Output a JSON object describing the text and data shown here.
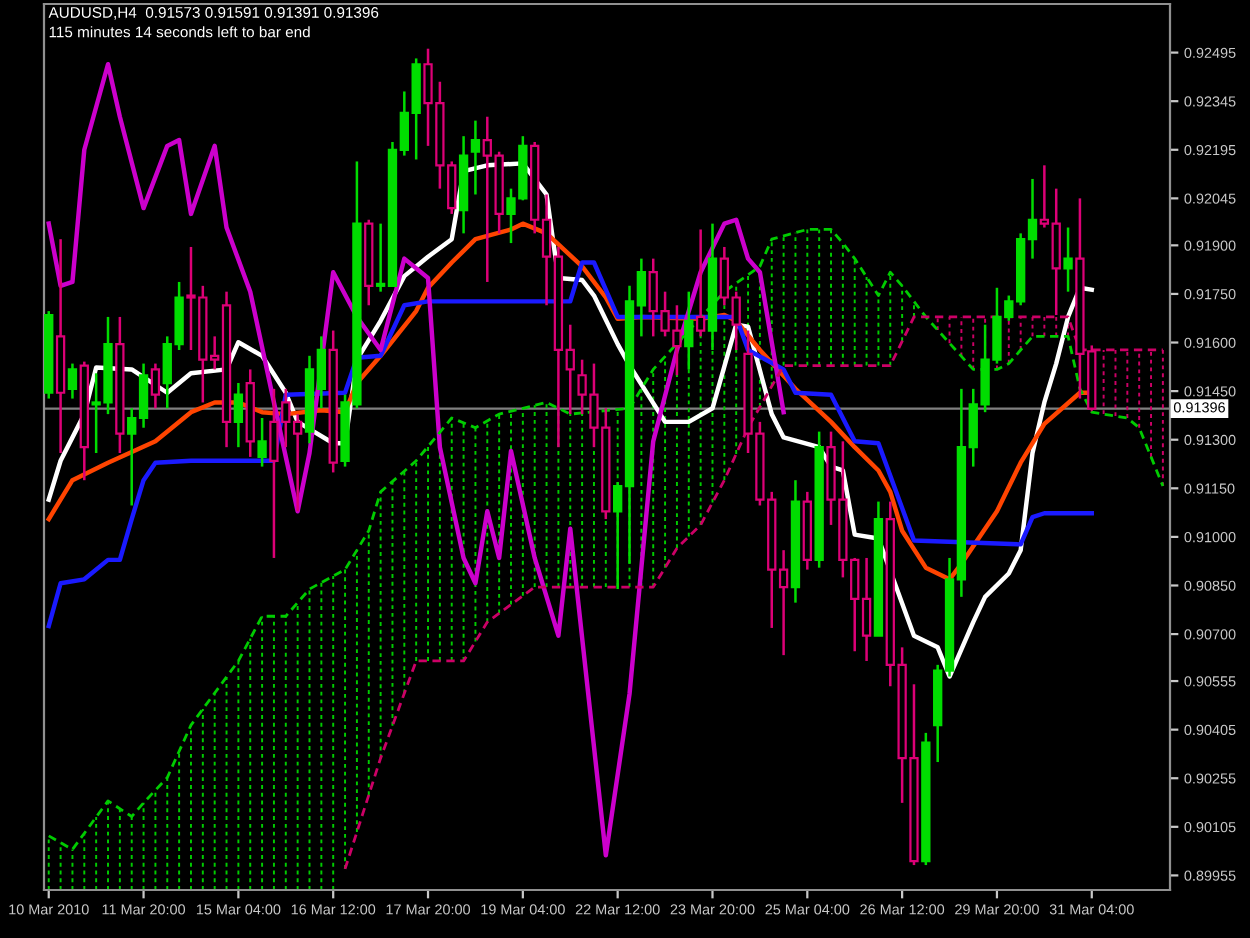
{
  "chart_data": {
    "type": "candlestick",
    "title": "AUDUSD,H4  0.91573 0.91591 0.91391 0.91396",
    "subtitle": "115 minutes 14 seconds left to bar end",
    "categories": [
      "10 Mar 2010",
      null,
      null,
      null,
      null,
      null,
      null,
      null,
      "11 Mar 20:00",
      null,
      null,
      null,
      null,
      null,
      null,
      null,
      "15 Mar 04:00",
      null,
      null,
      null,
      null,
      null,
      null,
      null,
      "16 Mar 12:00",
      null,
      null,
      null,
      null,
      null,
      null,
      null,
      "17 Mar 20:00",
      null,
      null,
      null,
      null,
      null,
      null,
      null,
      "19 Mar 04:00",
      null,
      null,
      null,
      null,
      null,
      null,
      null,
      "22 Mar 12:00",
      null,
      null,
      null,
      null,
      null,
      null,
      null,
      "23 Mar 20:00",
      null,
      null,
      null,
      null,
      null,
      null,
      null,
      "25 Mar 04:00",
      null,
      null,
      null,
      null,
      null,
      null,
      null,
      "26 Mar 12:00",
      null,
      null,
      null,
      null,
      null,
      null,
      null,
      "29 Mar 20:00",
      null,
      null,
      null,
      null,
      null,
      null,
      null,
      "31 Mar 04:00",
      null,
      null,
      null,
      null,
      null,
      null
    ],
    "ohlc": [
      [
        0.91445,
        0.91697,
        0.91427,
        0.91685
      ],
      [
        0.91619,
        0.91919,
        0.91259,
        0.91445
      ],
      [
        0.91457,
        0.91535,
        0.91427,
        0.91517
      ],
      [
        0.91529,
        0.91541,
        0.91175,
        0.91277
      ],
      [
        0.91409,
        0.91505,
        0.91259,
        0.91415
      ],
      [
        0.91415,
        0.91679,
        0.91379,
        0.91595
      ],
      [
        0.91595,
        0.91679,
        0.91259,
        0.91319
      ],
      [
        0.91319,
        0.91397,
        0.91097,
        0.91367
      ],
      [
        0.91367,
        0.91535,
        0.91337,
        0.91499
      ],
      [
        0.91517,
        0.91535,
        0.91397,
        0.91439
      ],
      [
        0.91475,
        0.91619,
        0.91397,
        0.91595
      ],
      [
        0.91595,
        0.91787,
        0.91577,
        0.91739
      ],
      [
        0.91745,
        0.91895,
        0.91577,
        0.91739
      ],
      [
        0.91739,
        0.91775,
        0.91415,
        0.91547
      ],
      [
        0.91559,
        0.91619,
        0.91517,
        0.91547
      ],
      [
        0.91715,
        0.91757,
        0.91277,
        0.91355
      ],
      [
        0.91355,
        0.91475,
        0.91277,
        0.91439
      ],
      [
        0.91475,
        0.91517,
        0.91247,
        0.91295
      ],
      [
        0.91247,
        0.91367,
        0.91217,
        0.91295
      ],
      [
        0.91355,
        0.91457,
        0.90935,
        0.91235
      ],
      [
        0.91415,
        0.91457,
        0.91277,
        0.91355
      ],
      [
        0.91355,
        0.91379,
        0.91079,
        0.91319
      ],
      [
        0.91325,
        0.91559,
        0.91289,
        0.91517
      ],
      [
        0.91457,
        0.91619,
        0.91397,
        0.91577
      ],
      [
        0.91577,
        0.91637,
        0.91199,
        0.91229
      ],
      [
        0.91235,
        0.91439,
        0.91217,
        0.91415
      ],
      [
        0.91409,
        0.92159,
        0.91397,
        0.91967
      ],
      [
        0.91967,
        0.91979,
        0.91715,
        0.91775
      ],
      [
        0.91775,
        0.91967,
        0.91757,
        0.91781
      ],
      [
        0.91775,
        0.92219,
        0.91775,
        0.92195
      ],
      [
        0.92195,
        0.92375,
        0.92177,
        0.92309
      ],
      [
        0.92309,
        0.92477,
        0.92165,
        0.92459
      ],
      [
        0.92459,
        0.92507,
        0.92207,
        0.92339
      ],
      [
        0.92339,
        0.92405,
        0.92075,
        0.92147
      ],
      [
        0.92147,
        0.92159,
        0.91997,
        0.92015
      ],
      [
        0.92009,
        0.92237,
        0.91937,
        0.92177
      ],
      [
        0.92189,
        0.92285,
        0.92057,
        0.92225
      ],
      [
        0.92225,
        0.92297,
        0.91787,
        0.92177
      ],
      [
        0.92177,
        0.92189,
        0.91937,
        0.91997
      ],
      [
        0.91997,
        0.92075,
        0.91907,
        0.92045
      ],
      [
        0.92045,
        0.92237,
        0.92039,
        0.92207
      ],
      [
        0.92207,
        0.92219,
        0.91937,
        0.91979
      ],
      [
        0.91979,
        0.92057,
        0.91715,
        0.91865
      ],
      [
        0.91865,
        0.91895,
        0.91277,
        0.91577
      ],
      [
        0.91577,
        0.91655,
        0.91379,
        0.91517
      ],
      [
        0.91499,
        0.91547,
        0.91379,
        0.91439
      ],
      [
        0.91439,
        0.91535,
        0.91277,
        0.91337
      ],
      [
        0.91337,
        0.91397,
        0.91055,
        0.91079
      ],
      [
        0.91079,
        0.91169,
        0.90839,
        0.91157
      ],
      [
        0.91157,
        0.91775,
        0.90917,
        0.91727
      ],
      [
        0.91715,
        0.91859,
        0.91619,
        0.91817
      ],
      [
        0.91817,
        0.91859,
        0.91619,
        0.91697
      ],
      [
        0.91697,
        0.91757,
        0.91619,
        0.91637
      ],
      [
        0.91637,
        0.91715,
        0.91499,
        0.91589
      ],
      [
        0.91589,
        0.91757,
        0.91517,
        0.91667
      ],
      [
        0.91679,
        0.91949,
        0.91619,
        0.91637
      ],
      [
        0.91637,
        0.91967,
        0.91577,
        0.91859
      ],
      [
        0.91859,
        0.91895,
        0.91715,
        0.91739
      ],
      [
        0.91739,
        0.91757,
        0.91577,
        0.91655
      ],
      [
        0.91565,
        0.91637,
        0.91259,
        0.91319
      ],
      [
        0.91319,
        0.91355,
        0.91097,
        0.91115
      ],
      [
        0.91115,
        0.91139,
        0.90719,
        0.90899
      ],
      [
        0.90899,
        0.90959,
        0.90635,
        0.90845
      ],
      [
        0.90845,
        0.91175,
        0.90797,
        0.91109
      ],
      [
        0.91109,
        0.91139,
        0.90899,
        0.90929
      ],
      [
        0.90929,
        0.91325,
        0.90905,
        0.91277
      ],
      [
        0.91277,
        0.91325,
        0.91037,
        0.91115
      ],
      [
        0.91115,
        0.91295,
        0.90875,
        0.90929
      ],
      [
        0.90929,
        0.90935,
        0.90647,
        0.90809
      ],
      [
        0.90809,
        0.90935,
        0.90617,
        0.90695
      ],
      [
        0.90695,
        0.91109,
        0.90695,
        0.91055
      ],
      [
        0.91055,
        0.91109,
        0.90539,
        0.90605
      ],
      [
        0.90605,
        0.90659,
        0.90179,
        0.90317
      ],
      [
        0.90317,
        0.90545,
        0.89987,
        0.89999
      ],
      [
        0.89999,
        0.90395,
        0.89987,
        0.90365
      ],
      [
        0.90419,
        0.90605,
        0.90305,
        0.90587
      ],
      [
        0.90587,
        0.90935,
        0.90569,
        0.90869
      ],
      [
        0.90869,
        0.91457,
        0.90815,
        0.91277
      ],
      [
        0.91277,
        0.91457,
        0.91217,
        0.91409
      ],
      [
        0.91409,
        0.91655,
        0.91385,
        0.91547
      ],
      [
        0.91547,
        0.91769,
        0.91535,
        0.91679
      ],
      [
        0.91679,
        0.91745,
        0.91667,
        0.91727
      ],
      [
        0.91727,
        0.91937,
        0.91715,
        0.91919
      ],
      [
        0.91919,
        0.92105,
        0.91859,
        0.91979
      ],
      [
        0.91979,
        0.92147,
        0.91955,
        0.91967
      ],
      [
        0.91967,
        0.92075,
        0.91685,
        0.91829
      ],
      [
        0.91829,
        0.91955,
        0.91757,
        0.91859
      ],
      [
        0.91859,
        0.92045,
        0.91427,
        0.91565
      ],
      [
        0.91573,
        0.91591,
        0.91391,
        0.91396
      ],
      null,
      null,
      null,
      null,
      null,
      null
    ],
    "series": [
      {
        "type": "line",
        "color": "#ffffff",
        "values": [
          0.91115,
          0.91235,
          null,
          0.91379,
          0.91523,
          null,
          null,
          0.91517,
          null,
          null,
          0.91445,
          null,
          0.91505,
          null,
          null,
          0.91517,
          0.91601,
          null,
          0.91559,
          null,
          0.91445,
          0.91355,
          null,
          null,
          0.91289,
          0.91289,
          0.91547,
          null,
          0.91667,
          null,
          0.91805,
          null,
          0.91865,
          null,
          0.91919,
          0.92129,
          null,
          0.92147,
          null,
          null,
          0.92153,
          null,
          0.92057,
          0.91799,
          null,
          0.91793,
          0.91745,
          null,
          0.91595,
          0.91529,
          null,
          null,
          0.91355,
          null,
          0.91355,
          null,
          0.91397,
          null,
          0.91655,
          0.91649,
          null,
          0.91379,
          0.91307,
          null,
          null,
          0.91277,
          0.91217,
          0.91205,
          0.91007,
          null,
          0.90995,
          null,
          null,
          0.90695,
          null,
          0.90659,
          0.90569,
          null,
          0.90737,
          0.90815,
          null,
          0.90887,
          0.90959,
          0.91259,
          0.91415,
          0.91535,
          0.91679,
          0.91769,
          0.91763,
          null,
          null,
          null,
          null,
          null,
          null
        ]
      },
      {
        "type": "line",
        "color": "#ff4400",
        "values": [
          0.91055,
          null,
          0.91175,
          null,
          null,
          0.91229,
          null,
          null,
          null,
          0.91295,
          null,
          null,
          0.91385,
          null,
          0.91415,
          null,
          0.91415,
          null,
          0.91385,
          null,
          0.91379,
          null,
          null,
          0.91391,
          null,
          0.91385,
          0.91475,
          null,
          0.91559,
          null,
          null,
          0.91697,
          0.91769,
          null,
          0.91847,
          null,
          0.91919,
          null,
          null,
          0.91949,
          0.91967,
          null,
          0.91937,
          null,
          null,
          0.91835,
          null,
          0.91739,
          0.91673,
          null,
          0.91679,
          null,
          null,
          null,
          null,
          0.91673,
          null,
          0.91685,
          0.91667,
          null,
          0.91577,
          null,
          null,
          0.91457,
          null,
          null,
          0.91355,
          null,
          0.91277,
          null,
          0.91205,
          0.91139,
          0.91019,
          null,
          0.90905,
          null,
          0.90869,
          0.90917,
          null,
          null,
          0.91079,
          null,
          0.91229,
          null,
          0.91349,
          null,
          null,
          0.91445,
          0.91445,
          null,
          null,
          null,
          null,
          null,
          null
        ]
      },
      {
        "type": "line",
        "color": "#1a1aff",
        "values": [
          0.90725,
          0.90857,
          null,
          0.90869,
          null,
          0.90929,
          0.90929,
          0.91055,
          0.91175,
          0.91229,
          null,
          null,
          0.91235,
          null,
          null,
          null,
          null,
          null,
          null,
          0.91235,
          0.91439,
          null,
          null,
          null,
          null,
          0.91445,
          0.91553,
          null,
          0.91559,
          null,
          0.91715,
          null,
          0.91727,
          null,
          null,
          null,
          null,
          null,
          null,
          null,
          null,
          null,
          null,
          null,
          0.91727,
          0.91847,
          0.91847,
          null,
          0.91679,
          null,
          null,
          null,
          null,
          null,
          null,
          null,
          null,
          null,
          0.91679,
          0.91577,
          null,
          null,
          0.91517,
          0.91445,
          null,
          null,
          0.91439,
          null,
          0.91295,
          null,
          0.91289,
          null,
          null,
          0.90989,
          null,
          null,
          null,
          null,
          null,
          null,
          null,
          null,
          0.90977,
          0.91061,
          0.91073,
          null,
          null,
          null,
          0.91073,
          null,
          null,
          null,
          null,
          null,
          null
        ]
      },
      {
        "type": "line",
        "color": "#cc00cc",
        "values": [
          0.91967,
          0.91775,
          0.91787,
          0.92195,
          null,
          0.92459,
          0.92297,
          null,
          0.92015,
          null,
          0.92207,
          0.92225,
          0.91997,
          null,
          0.92207,
          0.91955,
          null,
          0.91757,
          null,
          0.91415,
          null,
          0.91079,
          0.91259,
          null,
          0.91817,
          null,
          0.91679,
          null,
          0.91577,
          null,
          0.91859,
          null,
          0.91799,
          0.91277,
          null,
          0.90935,
          0.90857,
          0.91079,
          0.90935,
          0.91265,
          null,
          0.90935,
          null,
          0.90695,
          0.91025,
          null,
          null,
          0.90017,
          null,
          0.90515,
          null,
          0.91295,
          null,
          0.91577,
          null,
          0.91817,
          null,
          0.91967,
          0.91979,
          0.91859,
          0.91817,
          null,
          0.91385,
          null,
          null,
          null,
          null,
          null,
          null,
          null,
          null,
          null,
          null,
          null,
          null,
          null,
          null,
          null,
          null,
          null,
          null,
          null,
          null,
          null,
          null,
          null,
          null,
          null,
          null,
          null,
          null,
          null,
          null,
          null,
          null
        ]
      },
      {
        "type": "line",
        "color": "#00cc00",
        "line_style": "dashed",
        "values": [
          0.90077,
          null,
          0.90035,
          null,
          null,
          0.90185,
          null,
          0.90137,
          0.90179,
          null,
          0.90257,
          null,
          0.90419,
          null,
          null,
          null,
          0.90617,
          null,
          0.90755,
          null,
          0.90755,
          null,
          0.90839,
          null,
          null,
          0.90899,
          null,
          0.91019,
          0.91139,
          null,
          null,
          0.91235,
          null,
          null,
          0.91367,
          null,
          0.91337,
          null,
          0.91379,
          null,
          null,
          null,
          0.91415,
          null,
          0.91379,
          null,
          null,
          null,
          null,
          0.91397,
          null,
          0.91517,
          null,
          null,
          0.91637,
          null,
          null,
          0.91757,
          null,
          null,
          0.91835,
          0.91919,
          null,
          null,
          0.91949,
          null,
          0.91949,
          0.91907,
          0.91859,
          null,
          0.91745,
          0.91817,
          0.91775,
          null,
          0.91679,
          null,
          null,
          null,
          0.91517,
          null,
          0.91517,
          0.91535,
          null,
          0.91619,
          null,
          null,
          0.91619,
          0.91457,
          0.91385,
          null,
          null,
          0.91367,
          0.91337,
          null,
          0.91157
        ]
      },
      {
        "type": "line",
        "color": "#cc0066",
        "line_style": "dashed",
        "values": [
          null,
          null,
          null,
          null,
          null,
          null,
          null,
          null,
          null,
          null,
          null,
          null,
          null,
          null,
          null,
          null,
          null,
          null,
          null,
          null,
          null,
          null,
          null,
          null,
          null,
          0.89975,
          null,
          null,
          0.90317,
          null,
          null,
          0.90617,
          null,
          null,
          null,
          0.90617,
          null,
          0.90737,
          null,
          null,
          null,
          0.90845,
          null,
          null,
          null,
          null,
          null,
          null,
          null,
          null,
          null,
          0.90845,
          null,
          0.90965,
          null,
          0.91037,
          null,
          0.91175,
          null,
          0.91337,
          null,
          null,
          0.91529,
          null,
          null,
          null,
          null,
          null,
          null,
          null,
          null,
          0.91529,
          null,
          0.91679,
          null,
          null,
          null,
          null,
          null,
          null,
          null,
          null,
          null,
          null,
          null,
          null,
          0.91679,
          0.91577,
          null,
          null,
          null,
          null,
          null,
          null,
          0.91577
        ]
      }
    ],
    "ylim": [
      0.8991,
      0.92645
    ],
    "yticks": [
      {
        "value": 0.89955,
        "label": "0.89955"
      },
      {
        "value": 0.90105,
        "label": "0.90105"
      },
      {
        "value": 0.90255,
        "label": "0.90255"
      },
      {
        "value": 0.90405,
        "label": "0.90405"
      },
      {
        "value": 0.90555,
        "label": "0.90555"
      },
      {
        "value": 0.907,
        "label": "0.90700"
      },
      {
        "value": 0.9085,
        "label": "0.90850"
      },
      {
        "value": 0.91,
        "label": "0.91000"
      },
      {
        "value": 0.9115,
        "label": "0.91150"
      },
      {
        "value": 0.913,
        "label": "0.91300"
      },
      {
        "value": 0.9145,
        "label": "0.91450"
      },
      {
        "value": 0.916,
        "label": "0.91600"
      },
      {
        "value": 0.9175,
        "label": "0.91750"
      },
      {
        "value": 0.919,
        "label": "0.91900"
      },
      {
        "value": 0.92045,
        "label": "0.92045"
      },
      {
        "value": 0.92195,
        "label": "0.92195"
      },
      {
        "value": 0.92345,
        "label": "0.92345"
      },
      {
        "value": 0.92495,
        "label": "0.92495"
      }
    ],
    "ref_lines": [
      {
        "axis": "y",
        "value": 0.91396,
        "label": "0.91396",
        "color": "#808080"
      }
    ]
  }
}
